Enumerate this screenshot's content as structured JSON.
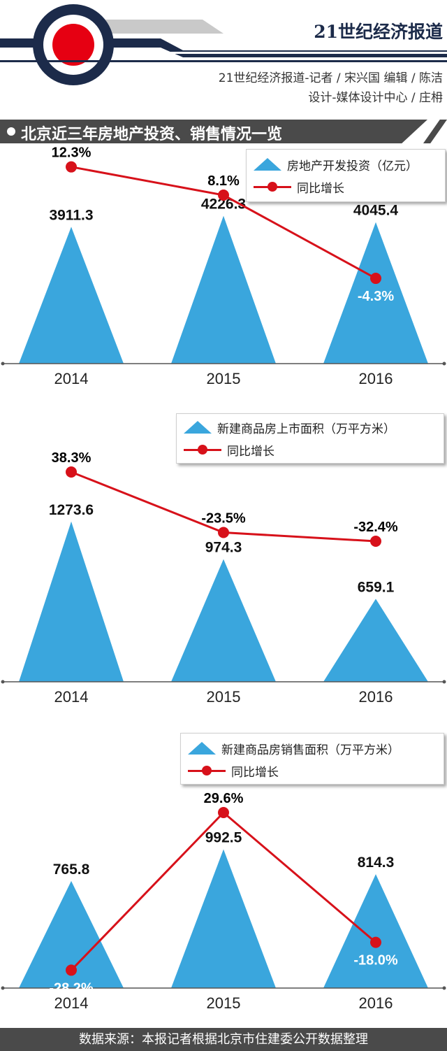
{
  "header": {
    "brand": "21世纪经济报道",
    "credit_line1": "21世纪经济报道-记者 / 宋兴国   编辑 / 陈洁",
    "credit_line2": "设计-媒体设计中心 / 庄枏"
  },
  "section_title": "北京近三年房地产投资、销售情况一览",
  "footer": "数据来源：本报记者根据北京市住建委公开数据整理",
  "colors": {
    "triangle": "#3aa6dd",
    "line": "#d7111a",
    "bar": "#4a4a4a",
    "logo_navy": "#1c2b4a"
  },
  "chart_data": [
    {
      "type": "bar",
      "categories": [
        "2014",
        "2015",
        "2016"
      ],
      "series": [
        {
          "name": "房地产开发投资（亿元）",
          "kind": "triangle",
          "values": [
            3911.3,
            4226.3,
            4045.4
          ],
          "labels": [
            "3911.3",
            "4226.3",
            "4045.4"
          ]
        },
        {
          "name": "同比增长",
          "kind": "line",
          "values": [
            12.3,
            8.1,
            -4.3
          ],
          "labels": [
            "12.3%",
            "8.1%",
            "-4.3%"
          ]
        }
      ]
    },
    {
      "type": "bar",
      "categories": [
        "2014",
        "2015",
        "2016"
      ],
      "series": [
        {
          "name": "新建商品房上市面积（万平方米）",
          "kind": "triangle",
          "values": [
            1273.6,
            974.3,
            659.1
          ],
          "labels": [
            "1273.6",
            "974.3",
            "659.1"
          ]
        },
        {
          "name": "同比增长",
          "kind": "line",
          "values": [
            38.3,
            -23.5,
            -32.4
          ],
          "labels": [
            "38.3%",
            "-23.5%",
            "-32.4%"
          ]
        }
      ]
    },
    {
      "type": "bar",
      "categories": [
        "2014",
        "2015",
        "2016"
      ],
      "series": [
        {
          "name": "新建商品房销售面积（万平方米）",
          "kind": "triangle",
          "values": [
            765.8,
            992.5,
            814.3
          ],
          "labels": [
            "765.8",
            "992.5",
            "814.3"
          ]
        },
        {
          "name": "同比增长",
          "kind": "line",
          "values": [
            -28.2,
            29.6,
            -18.0
          ],
          "labels": [
            "-28.2%",
            "29.6%",
            "-18.0%"
          ]
        }
      ]
    }
  ]
}
